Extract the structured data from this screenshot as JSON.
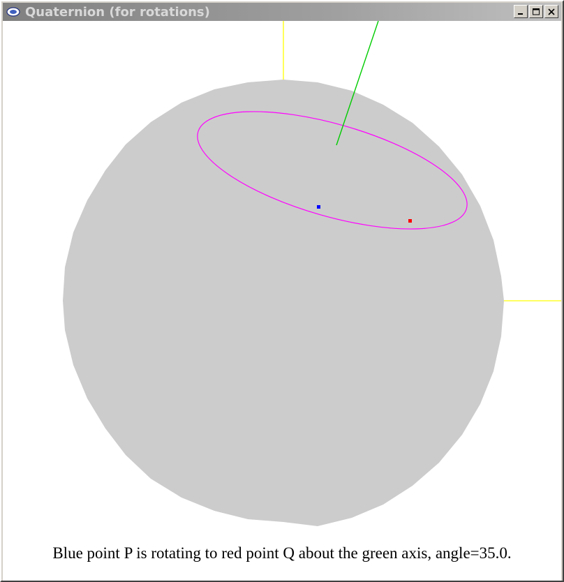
{
  "window": {
    "title": "Quaternion (for rotations)",
    "app_icon": "glut-app-icon",
    "buttons": [
      "minimize",
      "maximize",
      "close"
    ]
  },
  "scene": {
    "sphere_color": "#cccccc",
    "coordinate_axes_color": "#ffff00",
    "rotation_axis_color": "#00cc00",
    "rotation_path_color": "#ff00ff",
    "point_p_color": "#0000ff",
    "point_q_color": "#ff0000"
  },
  "caption": "Blue point P is rotating to red point Q about the green axis, angle=35.0."
}
